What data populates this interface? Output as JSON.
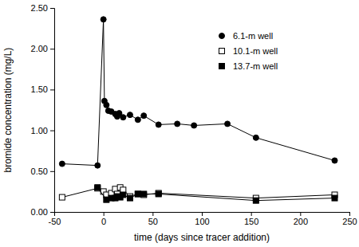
{
  "chart_data": {
    "type": "line",
    "x_label": "time (days since tracer addition)",
    "y_label": "bromide concentration (mg/L)",
    "xlim": [
      -50,
      250
    ],
    "xticks": [
      -50,
      0,
      50,
      100,
      150,
      200,
      250
    ],
    "ylim": [
      0,
      2.5
    ],
    "yticks": [
      {
        "value": 0,
        "label": "0.00"
      },
      {
        "value": 0.5,
        "label": "0.50"
      },
      {
        "value": 1,
        "label": "1.00"
      },
      {
        "value": 1.5,
        "label": "1.50"
      },
      {
        "value": 2,
        "label": "2.00"
      },
      {
        "value": 2.5,
        "label": "2.50"
      }
    ],
    "grid": false,
    "legend": "upper right",
    "series": [
      {
        "name": "6.1-m well",
        "color": "#000000",
        "marker": "circle",
        "x": [
          -42,
          -6,
          0,
          1,
          3,
          5,
          8,
          12,
          14,
          16,
          20,
          27,
          35,
          41,
          56,
          75,
          92,
          126,
          155,
          235
        ],
        "values": [
          0.59,
          0.57,
          2.36,
          1.36,
          1.31,
          1.24,
          1.23,
          1.2,
          1.17,
          1.21,
          1.16,
          1.19,
          1.13,
          1.18,
          1.07,
          1.08,
          1.06,
          1.08,
          0.91,
          0.63
        ]
      },
      {
        "name": "10.1-m well",
        "color": "#000000",
        "marker": "square-open",
        "x": [
          -42,
          -6,
          0,
          3,
          8,
          12,
          14,
          17,
          20,
          27,
          35,
          41,
          56,
          155,
          235
        ],
        "values": [
          0.18,
          0.29,
          0.25,
          0.21,
          0.23,
          0.28,
          0.22,
          0.3,
          0.27,
          0.19,
          0.22,
          0.21,
          0.23,
          0.17,
          0.21
        ]
      },
      {
        "name": "13.7-m well",
        "color": "#000000",
        "marker": "square",
        "x": [
          -6,
          3,
          8,
          12,
          14,
          17,
          20,
          27,
          35,
          41,
          56,
          155,
          235
        ],
        "values": [
          0.3,
          0.15,
          0.17,
          0.17,
          0.19,
          0.18,
          0.21,
          0.17,
          0.22,
          0.22,
          0.22,
          0.14,
          0.17
        ]
      }
    ]
  }
}
